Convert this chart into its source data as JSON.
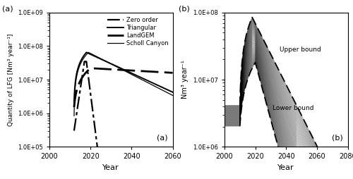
{
  "panel_a": {
    "xlabel": "Year",
    "ylabel": "Quantity of LFG [Nm³ year⁻¹]",
    "xlim": [
      2000,
      2060
    ],
    "ylim": [
      100000.0,
      1000000000.0
    ],
    "xticks": [
      2000,
      2020,
      2040,
      2060
    ],
    "yticks": [
      100000.0,
      1000000.0,
      10000000.0,
      100000000.0,
      1000000000.0
    ],
    "ytick_labels": [
      "1.0E+05",
      "1.0E+06",
      "1.0E+07",
      "1.0E+08",
      "1.0E+09"
    ],
    "legend": [
      "Zero order",
      "Triangular",
      "LandGEM",
      "Scholl Canyon"
    ]
  },
  "panel_b": {
    "xlabel": "Year",
    "ylabel": "Nm³ year⁻¹",
    "xlim": [
      2000,
      2080
    ],
    "ylim": [
      1000000.0,
      100000000.0
    ],
    "xticks": [
      2000,
      2020,
      2040,
      2060,
      2080
    ],
    "yticks": [
      1000000.0,
      10000000.0,
      100000000.0
    ],
    "ytick_labels": [
      "1.0E+06",
      "1.0E+07",
      "1.0E+08"
    ],
    "ann_upper": "Upper bound",
    "ann_lower": "Lower bound"
  }
}
